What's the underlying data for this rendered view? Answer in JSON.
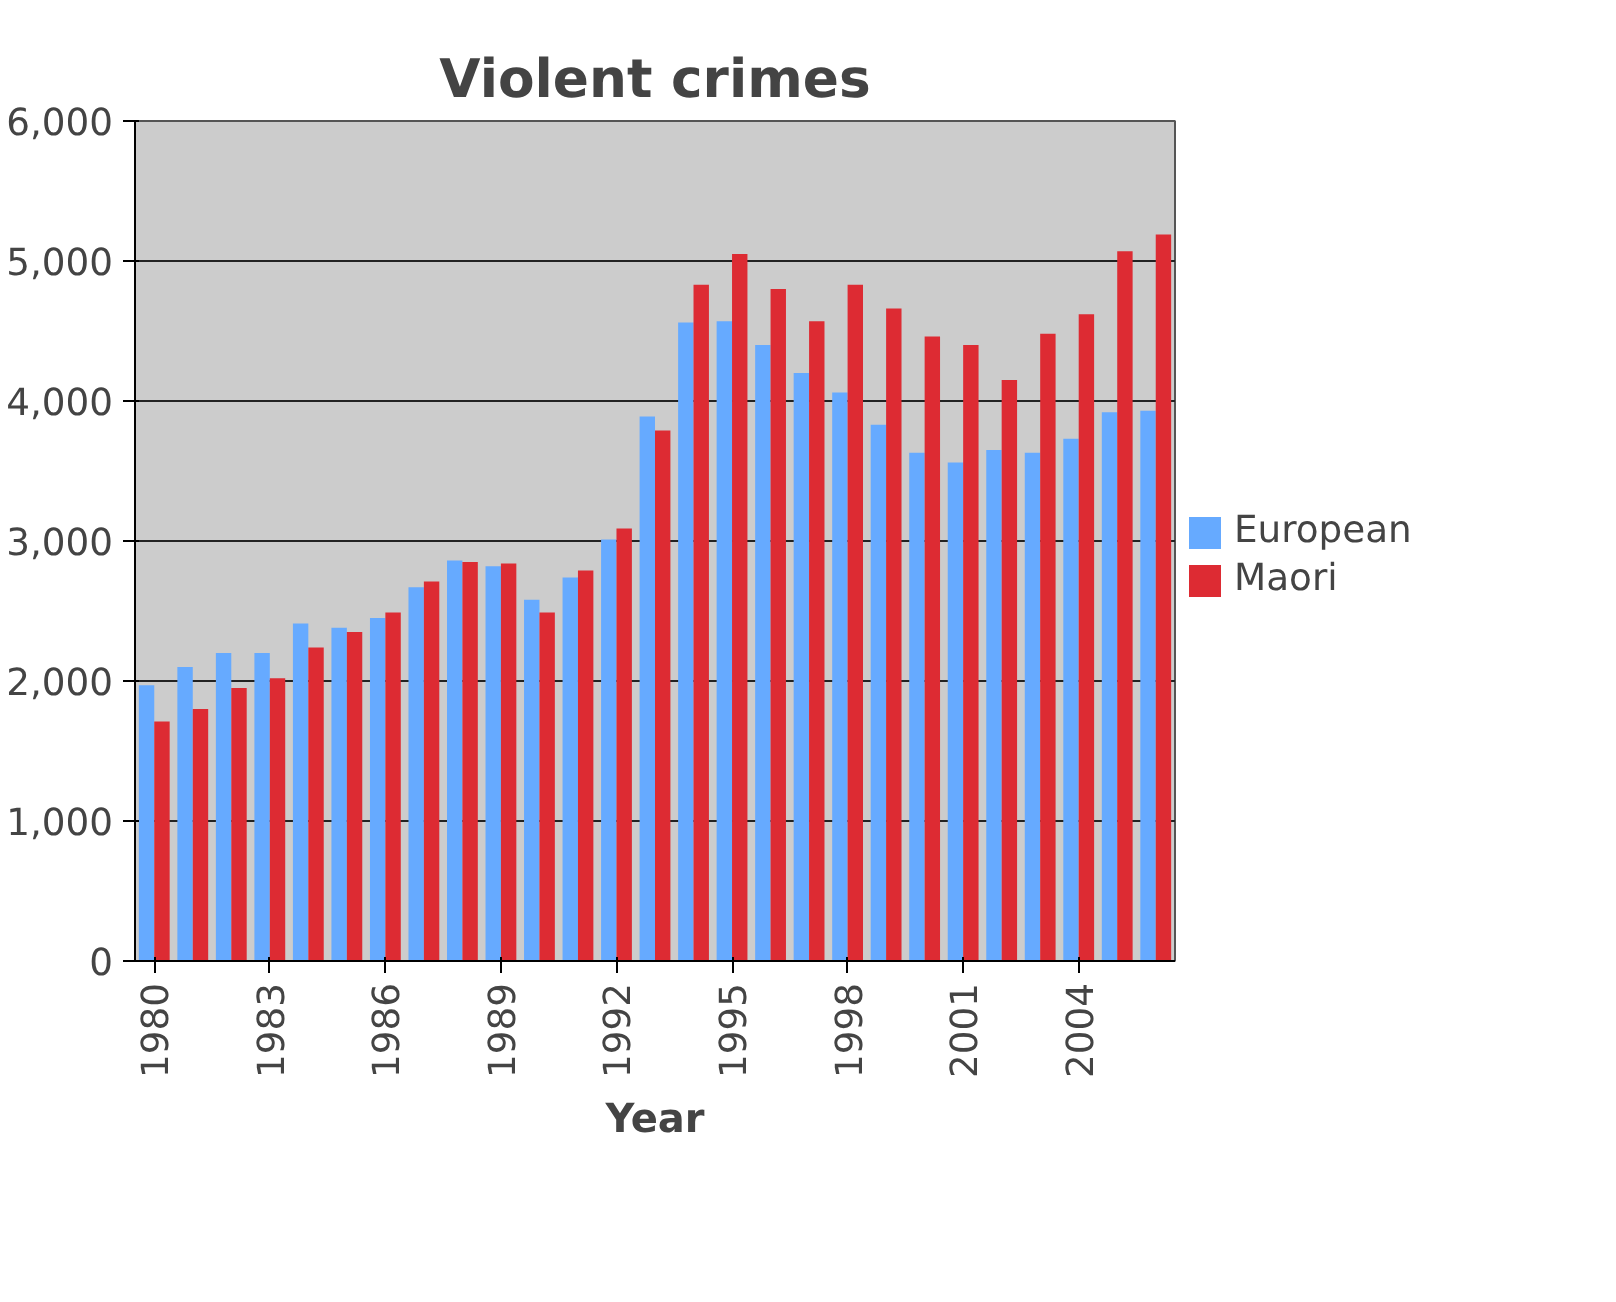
{
  "chart_data": {
    "type": "bar",
    "title": "Violent crimes",
    "xlabel": "Year",
    "categories": [
      "1980",
      null,
      null,
      "1983",
      null,
      null,
      "1986",
      null,
      null,
      "1989",
      null,
      null,
      "1992",
      null,
      null,
      "1995",
      null,
      null,
      "1998",
      null,
      null,
      "2001",
      null,
      null,
      "2004",
      null,
      null
    ],
    "series": [
      {
        "name": "European",
        "color": "#66aaff",
        "values": [
          1970,
          2100,
          2200,
          2200,
          2410,
          2380,
          2450,
          2670,
          2860,
          2820,
          2580,
          2740,
          3010,
          3890,
          4560,
          4570,
          4400,
          4200,
          4060,
          3830,
          3630,
          3560,
          3650,
          3630,
          3730,
          3920,
          3930
        ]
      },
      {
        "name": "Maori",
        "color": "#dd2b33",
        "values": [
          1710,
          1800,
          1950,
          2020,
          2240,
          2350,
          2490,
          2710,
          2850,
          2840,
          2490,
          2790,
          3090,
          3790,
          4830,
          5050,
          4800,
          4570,
          4830,
          4660,
          4460,
          4400,
          4150,
          4480,
          4620,
          5070,
          5190
        ]
      }
    ],
    "ylim": [
      0,
      6000
    ],
    "yticks": [
      {
        "value": 0,
        "label": "0"
      },
      {
        "value": 1000,
        "label": "1,000"
      },
      {
        "value": 2000,
        "label": "2,000"
      },
      {
        "value": 3000,
        "label": "3,000"
      },
      {
        "value": 4000,
        "label": "4,000"
      },
      {
        "value": 5000,
        "label": "5,000"
      },
      {
        "value": 6000,
        "label": "6,000"
      }
    ],
    "grid": "y",
    "legend": "right"
  }
}
